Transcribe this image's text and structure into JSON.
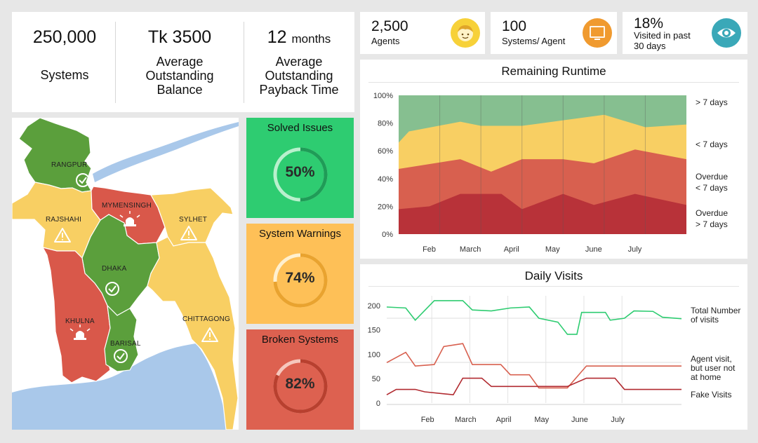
{
  "stats": [
    {
      "value": "250,000",
      "unit": "",
      "label_lines": [
        "Systems"
      ]
    },
    {
      "value": "Tk 3500",
      "unit": "",
      "label_lines": [
        "Average",
        "Outstanding",
        "Balance"
      ]
    },
    {
      "value": "12",
      "unit": "months",
      "label_lines": [
        "Average",
        "Outstanding",
        "Payback Time"
      ]
    }
  ],
  "kpis": [
    {
      "value": "2,500",
      "label_lines": [
        "Agents"
      ],
      "icon": "face-icon",
      "color": "#f7d139"
    },
    {
      "value": "100",
      "label_lines": [
        "Systems/ Agent"
      ],
      "icon": "monitor-icon",
      "color": "#f09a2f"
    },
    {
      "value": "18%",
      "label_lines": [
        "Visited in past",
        "30 days"
      ],
      "icon": "eye-icon",
      "color": "#3aa8b8"
    }
  ],
  "map": {
    "regions": [
      {
        "name": "RANGPUR",
        "status": "ok",
        "color": "#5b9f3c"
      },
      {
        "name": "MYMENSINGH",
        "status": "alarm",
        "color": "#d9584a"
      },
      {
        "name": "RAJSHAHI",
        "status": "warning",
        "color": "#f8cf63"
      },
      {
        "name": "SYLHET",
        "status": "warning",
        "color": "#f8cf63"
      },
      {
        "name": "DHAKA",
        "status": "ok",
        "color": "#5b9f3c"
      },
      {
        "name": "KHULNA",
        "status": "alarm",
        "color": "#d9584a"
      },
      {
        "name": "CHITTAGONG",
        "status": "warning",
        "color": "#f8cf63"
      },
      {
        "name": "BARISAL",
        "status": "ok",
        "color": "#5b9f3c"
      }
    ],
    "water_color": "#a9c8ea"
  },
  "tiles": [
    {
      "title": "Solved Issues",
      "percent": 50,
      "label": "50%",
      "bg": "#2ecc71",
      "arc": "#1f9c57",
      "track": "#b9f0cd"
    },
    {
      "title": "System Warnings",
      "percent": 74,
      "label": "74%",
      "bg": "#fec057",
      "arc": "#e9a32f",
      "track": "#fff0cf"
    },
    {
      "title": "Broken Systems",
      "percent": 82,
      "label": "82%",
      "bg": "#dd6150",
      "arc": "#b8402f",
      "track": "#f6c7bd"
    }
  ],
  "chart_data": [
    {
      "type": "area",
      "title": "Remaining Runtime",
      "x": [
        0,
        1,
        2,
        3,
        4,
        5,
        6,
        7,
        8,
        9,
        10,
        11,
        12,
        13,
        14,
        15,
        16,
        17,
        18,
        19,
        20,
        21,
        22,
        23,
        24
      ],
      "x_ticks": [
        {
          "at": 4,
          "label": "Feb"
        },
        {
          "at": 8,
          "label": "March"
        },
        {
          "at": 12,
          "label": "April"
        },
        {
          "at": 16,
          "label": "May"
        },
        {
          "at": 20,
          "label": "June"
        },
        {
          "at": 24,
          "label": "July"
        }
      ],
      "ylim": [
        0,
        100
      ],
      "y_ticks": [
        "0%",
        "20%",
        "40%",
        "60%",
        "80%",
        "100%"
      ],
      "stacked": true,
      "series": [
        {
          "name": "Overdue > 7 days",
          "legend_lines": [
            "Overdue",
            "> 7 days"
          ],
          "color": "#b83239",
          "points": [
            [
              0,
              18
            ],
            [
              3,
              20
            ],
            [
              6,
              29
            ],
            [
              10,
              29
            ],
            [
              12,
              18
            ],
            [
              16,
              29
            ],
            [
              19,
              21
            ],
            [
              23,
              29
            ],
            [
              28,
              21
            ]
          ]
        },
        {
          "name": "Overdue < 7 days",
          "legend_lines": [
            "Overdue",
            "< 7 days"
          ],
          "color": "#d8604f",
          "points": [
            [
              0,
              47
            ],
            [
              6,
              54
            ],
            [
              9,
              45
            ],
            [
              12,
              54
            ],
            [
              16,
              54
            ],
            [
              19,
              51
            ],
            [
              23,
              61
            ],
            [
              28,
              54
            ]
          ]
        },
        {
          "name": "< 7 days",
          "legend_lines": [
            "< 7 days"
          ],
          "color": "#f8cf63",
          "points": [
            [
              0,
              66
            ],
            [
              1,
              74
            ],
            [
              6,
              81
            ],
            [
              8,
              78
            ],
            [
              12,
              78
            ],
            [
              16,
              82
            ],
            [
              20,
              86
            ],
            [
              24,
              77
            ],
            [
              28,
              79
            ]
          ]
        },
        {
          "name": "> 7 days",
          "legend_lines": [
            "> 7 days"
          ],
          "color": "#86bf90",
          "points": [
            [
              0,
              100
            ],
            [
              28,
              100
            ]
          ]
        }
      ]
    },
    {
      "type": "line",
      "title": "Daily Visits",
      "x_ticks": [
        {
          "at": 4,
          "label": "Feb"
        },
        {
          "at": 8,
          "label": "March"
        },
        {
          "at": 12,
          "label": "April"
        },
        {
          "at": 16,
          "label": "May"
        },
        {
          "at": 20,
          "label": "June"
        },
        {
          "at": 24,
          "label": "July"
        }
      ],
      "y_ticks": [
        {
          "at": 0,
          "label": "0"
        },
        {
          "at": 50,
          "label": "50"
        },
        {
          "at": 100,
          "label": "100"
        },
        {
          "at": 150,
          "label": "150"
        },
        {
          "at": 200,
          "label": "200"
        }
      ],
      "series": [
        {
          "name": "Total Number of visits",
          "legend_lines": [
            "Total Number",
            "of visits"
          ],
          "color": "#2ecc71",
          "points": [
            [
              0,
              197
            ],
            [
              2,
              195
            ],
            [
              3,
              170
            ],
            [
              5,
              210
            ],
            [
              8,
              210
            ],
            [
              9,
              191
            ],
            [
              11,
              189
            ],
            [
              13,
              195
            ],
            [
              15,
              197
            ],
            [
              16,
              174
            ],
            [
              18,
              166
            ],
            [
              19,
              141
            ],
            [
              20,
              141
            ],
            [
              20.5,
              186
            ],
            [
              23,
              186
            ],
            [
              23.5,
              170
            ],
            [
              25,
              174
            ],
            [
              26,
              189
            ],
            [
              28,
              188
            ],
            [
              29,
              176
            ],
            [
              31,
              173
            ]
          ]
        },
        {
          "name": "Agent visit, but user not at home",
          "legend_lines": [
            "Agent visit,",
            "but user not",
            "at home"
          ],
          "color": "#d8604f",
          "points": [
            [
              0,
              83
            ],
            [
              2,
              104
            ],
            [
              3,
              76
            ],
            [
              5,
              79
            ],
            [
              6,
              116
            ],
            [
              8,
              122
            ],
            [
              9,
              79
            ],
            [
              12,
              79
            ],
            [
              13,
              58
            ],
            [
              15,
              58
            ],
            [
              16,
              31
            ],
            [
              18,
              31
            ],
            [
              19,
              31
            ],
            [
              21,
              76
            ],
            [
              24,
              76
            ],
            [
              27,
              76
            ],
            [
              31,
              76
            ]
          ]
        },
        {
          "name": "Fake Visits",
          "legend_lines": [
            "Fake Visits"
          ],
          "color": "#b12a30",
          "points": [
            [
              0,
              17
            ],
            [
              1,
              28
            ],
            [
              3,
              28
            ],
            [
              4,
              23
            ],
            [
              7,
              17
            ],
            [
              8,
              51
            ],
            [
              10,
              51
            ],
            [
              11,
              34
            ],
            [
              13,
              34
            ],
            [
              16,
              34
            ],
            [
              19,
              34
            ],
            [
              21,
              51
            ],
            [
              24,
              51
            ],
            [
              25,
              28
            ],
            [
              31,
              28
            ]
          ]
        }
      ]
    }
  ]
}
